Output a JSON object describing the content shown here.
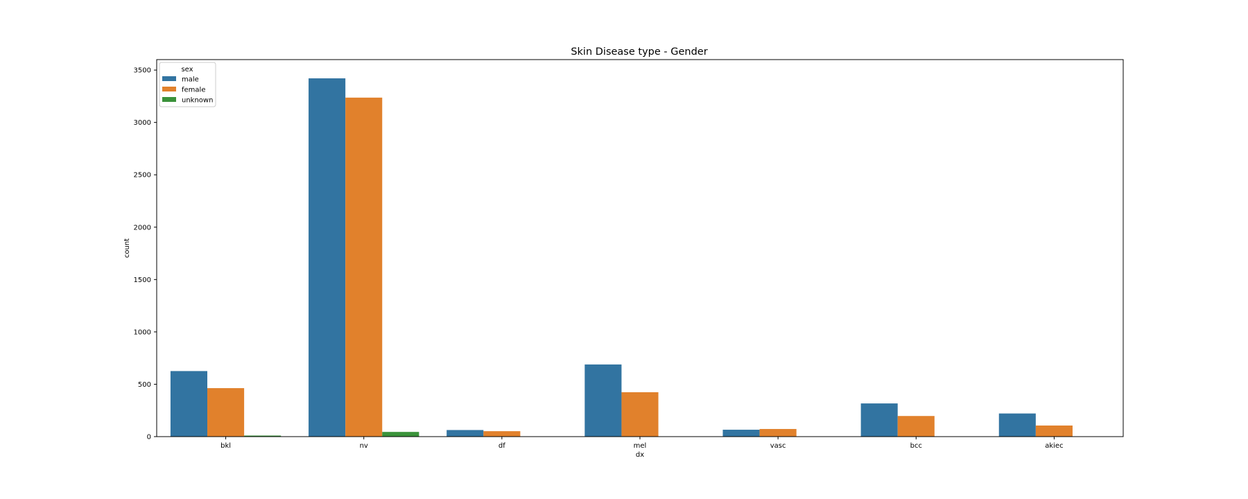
{
  "chart_data": {
    "type": "bar",
    "title": "Skin Disease type - Gender",
    "xlabel": "dx",
    "ylabel": "count",
    "categories": [
      "bkl",
      "nv",
      "df",
      "mel",
      "vasc",
      "bcc",
      "akiec"
    ],
    "series": [
      {
        "name": "male",
        "color": "#3274a1",
        "values": [
          626,
          3421,
          63,
          689,
          66,
          317,
          221
        ]
      },
      {
        "name": "female",
        "color": "#e1812c",
        "values": [
          463,
          3237,
          52,
          424,
          73,
          197,
          106
        ]
      },
      {
        "name": "unknown",
        "color": "#3a923a",
        "values": [
          10,
          45,
          0,
          0,
          0,
          0,
          0
        ]
      }
    ],
    "ylim": [
      0,
      3600
    ],
    "yticks": [
      0,
      500,
      1000,
      1500,
      2000,
      2500,
      3000,
      3500
    ],
    "legend": {
      "title": "sex",
      "position": "top-left"
    },
    "grid": false
  }
}
